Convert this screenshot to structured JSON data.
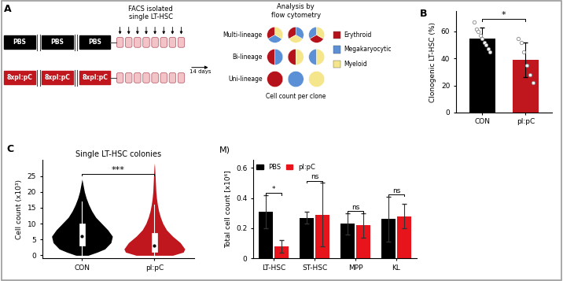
{
  "diagram": {
    "panel_label": "A",
    "rows": [
      {
        "boxes": [
          "PBS",
          "PBS",
          "PBS"
        ],
        "color": "#000000"
      },
      {
        "boxes": [
          "8xpI:pC",
          "8xpI:pC",
          "8xpI:pC"
        ],
        "color": "#c0161d"
      }
    ],
    "isolation_label": "FACS isolated\nsingle LT-HSC",
    "culture_label": "14 days",
    "analysis_label": "Analysis by\nflow cytometry",
    "clone_classes": [
      "Multi-lineage",
      "Bi-lineage",
      "Uni-lineage"
    ],
    "readout_label": "Cell count per clone",
    "lineages": [
      {
        "name": "Erythroid",
        "color": "#b5121b"
      },
      {
        "name": "Megakaryocytic",
        "color": "#5b8fd6"
      },
      {
        "name": "Myeloid",
        "color": "#f5e68c"
      }
    ]
  },
  "chart_data": [
    {
      "type": "bar",
      "panel_label": "B",
      "categories": [
        "CON",
        "pI:pC"
      ],
      "values": [
        55,
        39
      ],
      "errors": [
        8,
        13
      ],
      "points": [
        [
          67,
          62,
          60,
          57,
          55,
          52,
          50,
          47,
          45
        ],
        [
          55,
          52,
          45,
          35,
          28,
          22
        ]
      ],
      "colors": [
        "#000000",
        "#c0161d"
      ],
      "ylabel": "Clonogenic LT-HSC (%)",
      "ylim": [
        0,
        75
      ],
      "yticks": [
        0,
        20,
        40,
        60
      ],
      "significance": "*"
    },
    {
      "type": "violin",
      "panel_label": "C",
      "title": "Single LT-HSC colonies",
      "ylabel": "Cell count (x10³)",
      "categories": [
        "CON",
        "pI:pC"
      ],
      "colors": [
        "#000000",
        "#c0161d"
      ],
      "profiles": [
        {
          "y": [
            0,
            1,
            2,
            4,
            6,
            8,
            10,
            12,
            14,
            16,
            18,
            20,
            22,
            24
          ],
          "width": [
            0.2,
            0.5,
            0.75,
            0.95,
            1.0,
            0.85,
            0.65,
            0.45,
            0.32,
            0.22,
            0.14,
            0.08,
            0.04,
            0
          ]
        },
        {
          "y": [
            0,
            1,
            2,
            4,
            6,
            8,
            10,
            12,
            14,
            16,
            18,
            20,
            22,
            24,
            26,
            28,
            29
          ],
          "width": [
            0.6,
            0.95,
            1.0,
            0.85,
            0.6,
            0.4,
            0.28,
            0.2,
            0.14,
            0.1,
            0.07,
            0.05,
            0.04,
            0.03,
            0.02,
            0.01,
            0
          ]
        }
      ],
      "medians": [
        6,
        3
      ],
      "q1": [
        3,
        1
      ],
      "q3": [
        10,
        7
      ],
      "whisker_low": [
        0,
        0
      ],
      "whisker_high": [
        17,
        16
      ],
      "ylim": [
        -1,
        30
      ],
      "yticks": [
        0,
        5,
        10,
        15,
        20,
        25
      ],
      "significance": "***"
    },
    {
      "type": "bar",
      "title": "M)",
      "ylabel": "Total cell count [x10⁶]",
      "categories": [
        "LT-HSC",
        "ST-HSC",
        "MPP",
        "KL"
      ],
      "series": [
        {
          "name": "PBS",
          "color": "#000000",
          "values": [
            0.31,
            0.27,
            0.23,
            0.26
          ],
          "errors": [
            0.11,
            0.04,
            0.07,
            0.15
          ]
        },
        {
          "name": "pI:pC",
          "color": "#e8141c",
          "values": [
            0.08,
            0.29,
            0.22,
            0.28
          ],
          "errors": [
            0.04,
            0.21,
            0.08,
            0.08
          ]
        }
      ],
      "significance": [
        "*",
        "ns",
        "ns",
        "ns"
      ],
      "ylim": [
        0,
        0.65
      ],
      "yticks": [
        0,
        0.2,
        0.4,
        0.6
      ],
      "legend": "upper left"
    }
  ]
}
